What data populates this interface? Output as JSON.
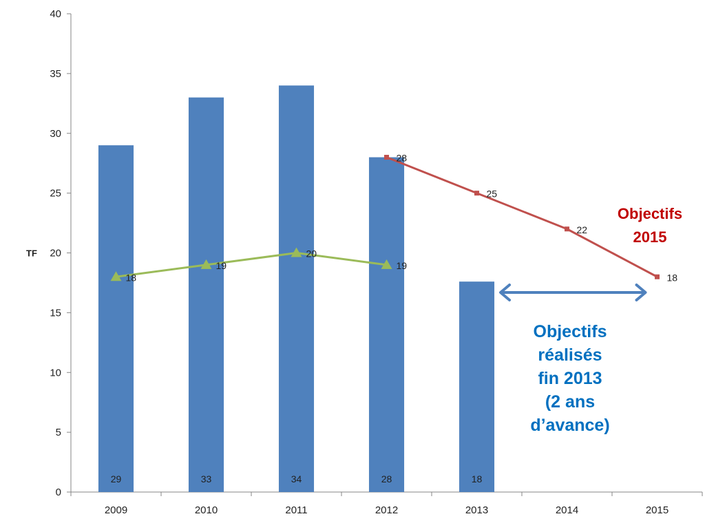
{
  "chart_data": {
    "type": "bar",
    "categories": [
      "2009",
      "2010",
      "2011",
      "2012",
      "2013",
      "2014",
      "2015"
    ],
    "ylabel": "TF",
    "xlabel": "",
    "ylim": [
      0,
      40
    ],
    "yticks": [
      0,
      5,
      10,
      15,
      20,
      25,
      30,
      35,
      40
    ],
    "grid": false,
    "legend": "none",
    "series": [
      {
        "type": "bar",
        "values": [
          29,
          33,
          34,
          28,
          17.6,
          null,
          null
        ],
        "labels": [
          "29",
          "33",
          "34",
          "28",
          "18",
          "",
          ""
        ],
        "color": "#4f81bd"
      },
      {
        "type": "line",
        "marker": "triangle",
        "values": [
          18,
          19,
          20,
          19,
          null,
          null,
          null
        ],
        "labels": [
          "18",
          "19",
          "20",
          "19",
          "",
          "",
          ""
        ],
        "color": "#9bbb59"
      },
      {
        "type": "line",
        "marker": "square",
        "values": [
          null,
          null,
          null,
          28,
          25,
          22,
          18
        ],
        "labels": [
          "",
          "",
          "",
          "28",
          "25",
          "22",
          "18"
        ],
        "color": "#c0504d"
      }
    ],
    "annotations": [
      {
        "id": "objectifs-2015",
        "lines": [
          "Objectifs",
          "2015"
        ],
        "color": "#c00000"
      },
      {
        "id": "objectifs-realises",
        "lines": [
          "Objectifs",
          "réalisés",
          "fin 2013",
          "(2 ans",
          "d’avance)"
        ],
        "color": "#0070c0"
      }
    ],
    "arrow": {
      "from_category": "2013",
      "to_category": "2015",
      "color": "#4f81bd"
    }
  }
}
